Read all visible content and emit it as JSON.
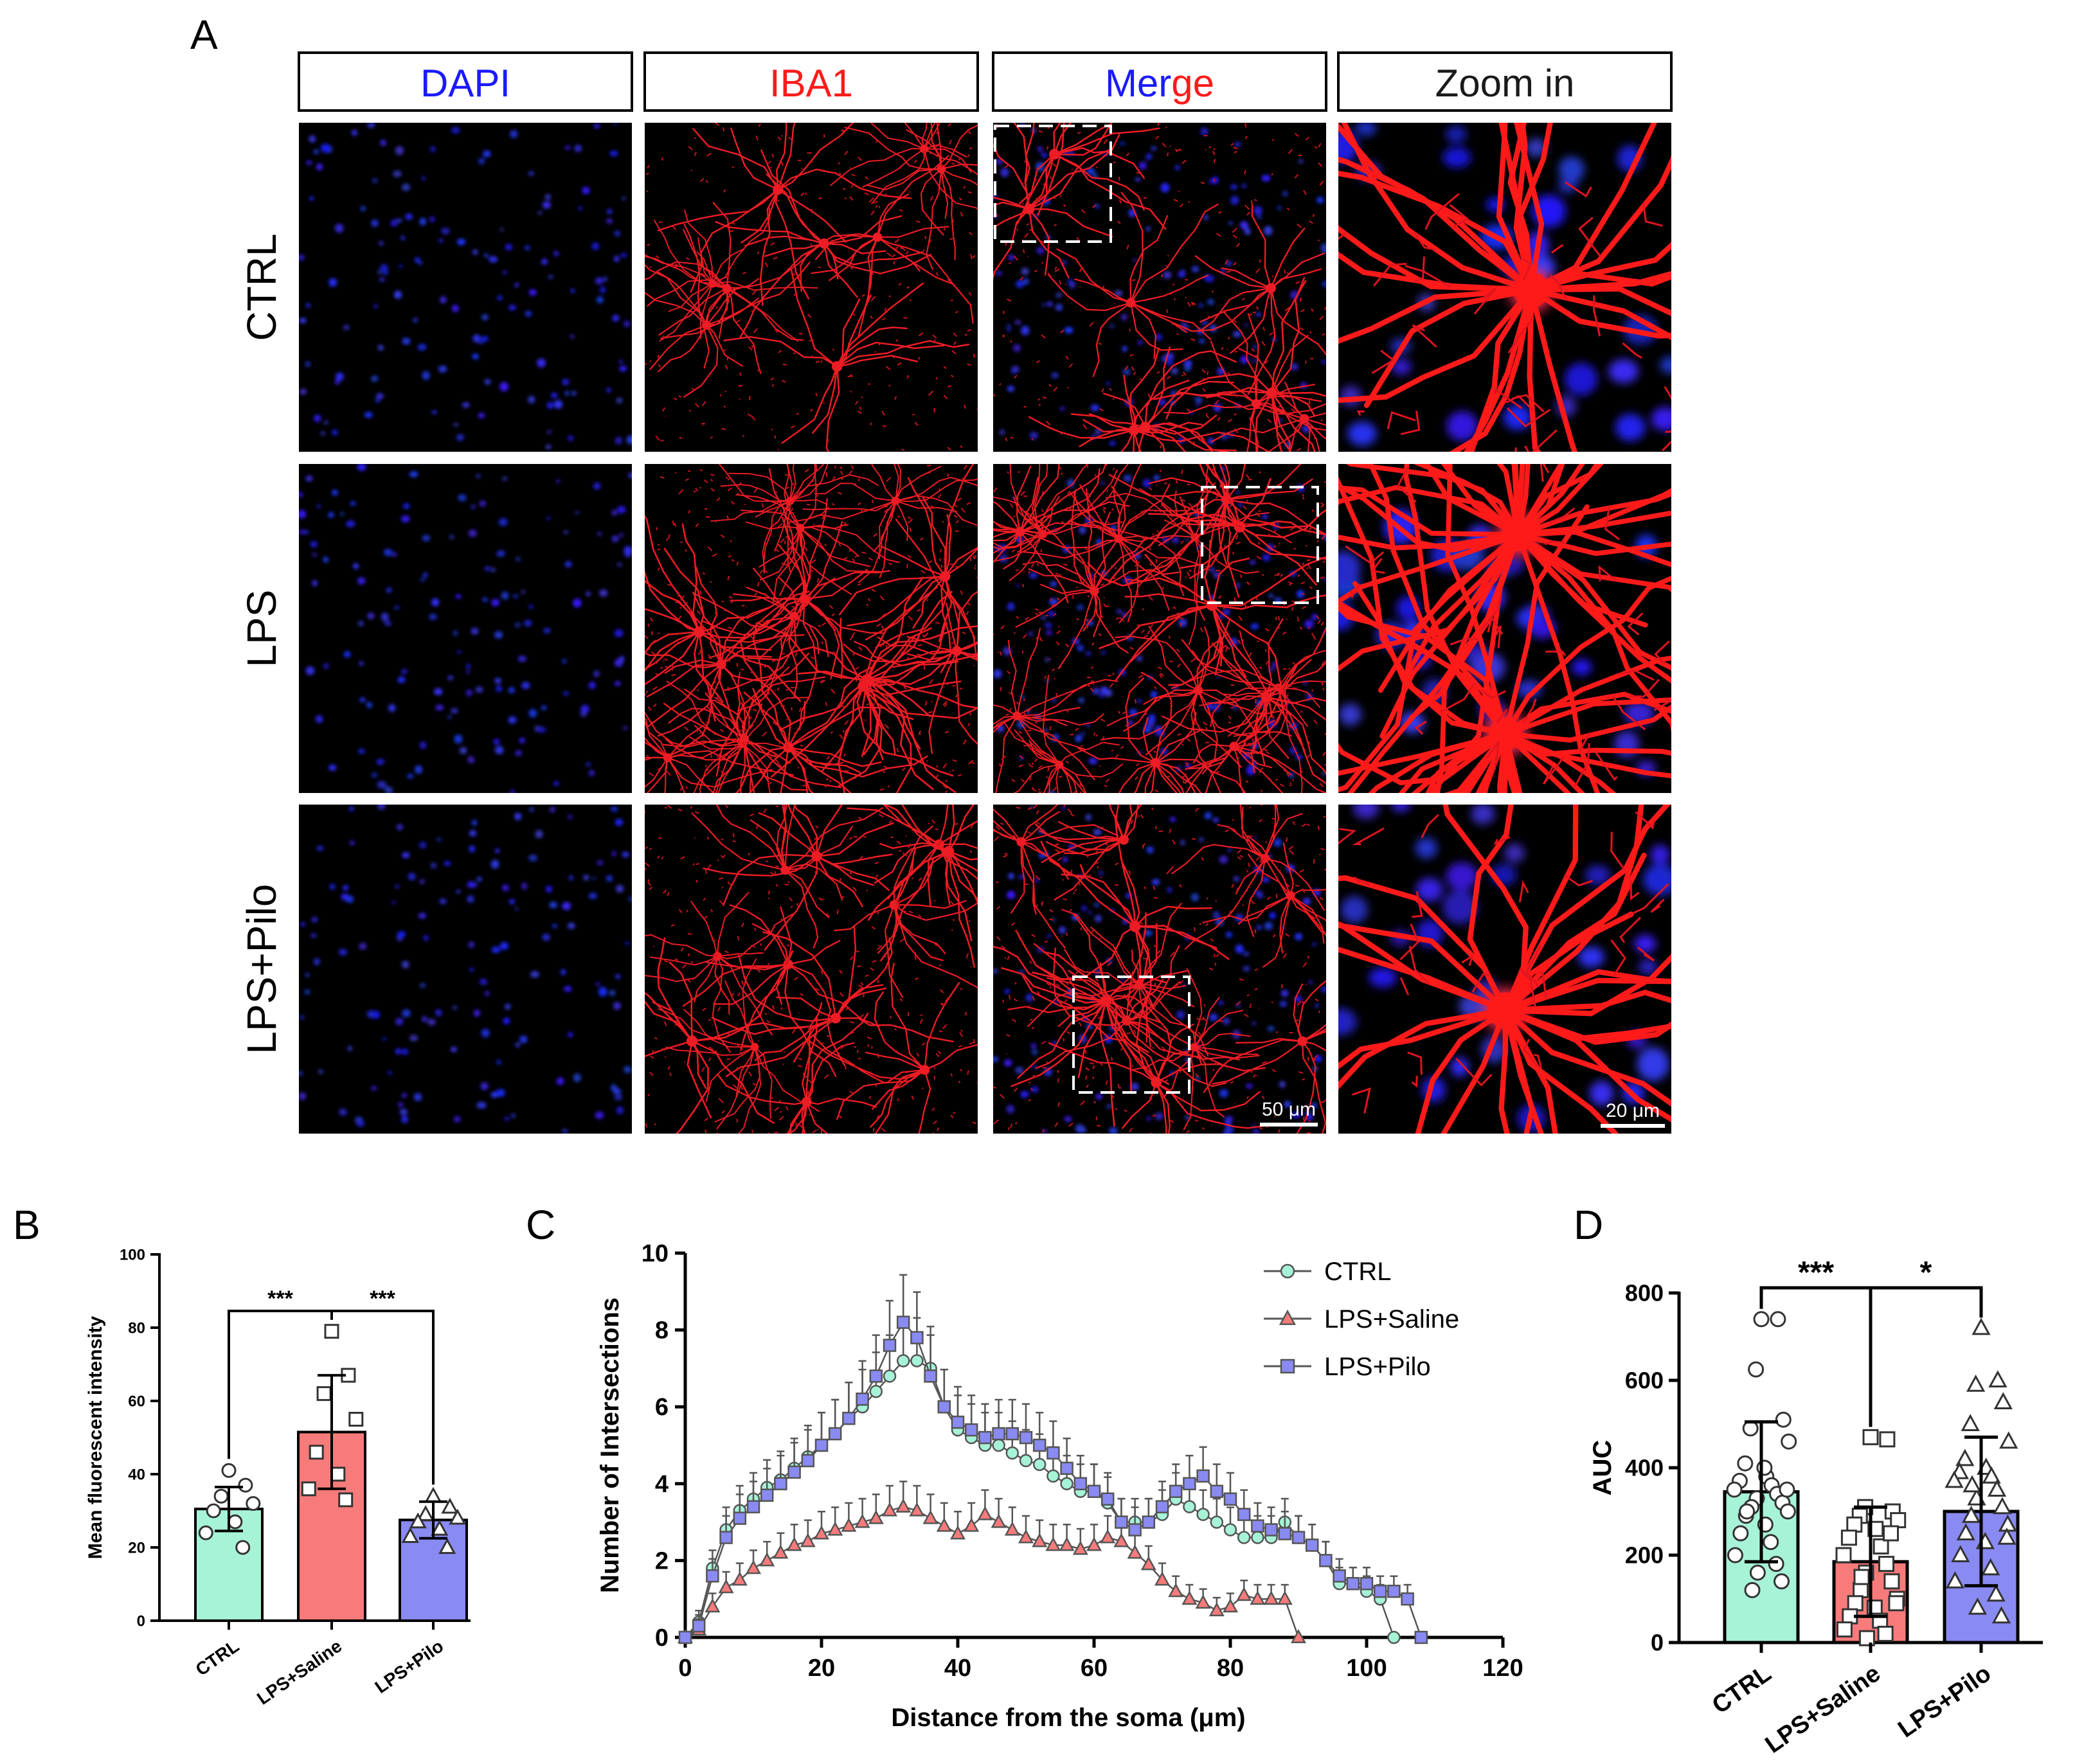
{
  "panel_a": {
    "letter": "A",
    "columns": [
      {
        "parts": [
          {
            "text": "DAPI",
            "color": "#1a1aff"
          }
        ]
      },
      {
        "parts": [
          {
            "text": "IBA1",
            "color": "#ff1a1a"
          }
        ]
      },
      {
        "parts": [
          {
            "text": "Mer",
            "color": "#1a1aff"
          },
          {
            "text": "ge",
            "color": "#ff1a1a"
          }
        ]
      },
      {
        "parts": [
          {
            "text": "Zoom in",
            "color": "#1a1a1a"
          }
        ]
      }
    ],
    "rows": [
      "CTRL",
      "LPS",
      "LPS+Pilo"
    ],
    "scale_bars": [
      "50 μm",
      "20 μm"
    ]
  },
  "chart_data": [
    {
      "panel": "B",
      "type": "bar",
      "ylabel": "Mean fluorescent intensity",
      "xlabel": "",
      "ylim": [
        0,
        100
      ],
      "yticks": [
        0,
        20,
        40,
        60,
        80,
        100
      ],
      "categories": [
        "CTRL",
        "LPS+Saline",
        "LPS+Pilo"
      ],
      "values": [
        30.5,
        51.5,
        27.5
      ],
      "errors": [
        6,
        15.5,
        5
      ],
      "colors": [
        "#a7f3d7",
        "#f87b7b",
        "#8a8af3"
      ],
      "markers": [
        "circle",
        "square",
        "triangle"
      ],
      "points": [
        [
          41,
          37,
          34,
          32,
          30,
          27,
          24,
          20
        ],
        [
          79,
          67,
          62,
          55,
          46,
          40,
          36,
          33
        ],
        [
          34,
          31,
          29,
          28,
          27,
          25,
          23,
          20
        ]
      ],
      "significance": [
        {
          "from": 0,
          "to": 1,
          "label": "***"
        },
        {
          "from": 1,
          "to": 2,
          "label": "***"
        }
      ]
    },
    {
      "panel": "C",
      "type": "line",
      "xlabel": "Distance from the soma (μm)",
      "ylabel": "Number of Intersections",
      "xlim": [
        0,
        120
      ],
      "ylim": [
        0,
        10
      ],
      "xticks": [
        0,
        20,
        40,
        60,
        80,
        100,
        120
      ],
      "yticks": [
        0,
        2,
        4,
        6,
        8,
        10
      ],
      "series": [
        {
          "name": "CTRL",
          "color": "#a7f3d7",
          "marker": "circle",
          "x": [
            0,
            2,
            4,
            6,
            8,
            10,
            12,
            14,
            16,
            18,
            20,
            22,
            24,
            26,
            28,
            30,
            32,
            34,
            36,
            38,
            40,
            42,
            44,
            46,
            48,
            50,
            52,
            54,
            56,
            58,
            60,
            62,
            64,
            66,
            68,
            70,
            72,
            74,
            76,
            78,
            80,
            82,
            84,
            86,
            88,
            90,
            92,
            94,
            96,
            98,
            100,
            102,
            104
          ],
          "y": [
            0,
            0.4,
            1.8,
            2.8,
            3.3,
            3.6,
            3.9,
            4.1,
            4.4,
            4.7,
            5.0,
            5.3,
            5.7,
            6.0,
            6.4,
            6.8,
            7.2,
            7.2,
            7.0,
            6.0,
            5.4,
            5.2,
            5.0,
            5.0,
            4.8,
            4.6,
            4.5,
            4.2,
            4.0,
            3.8,
            3.8,
            3.5,
            3.0,
            3.0,
            3.0,
            3.2,
            3.6,
            3.4,
            3.2,
            3.0,
            2.8,
            2.6,
            2.6,
            2.6,
            3.0,
            2.6,
            2.4,
            2.0,
            1.4,
            1.4,
            1.2,
            1.0,
            0
          ]
        },
        {
          "name": "LPS+Saline",
          "color": "#f87b7b",
          "marker": "triangle",
          "x": [
            0,
            2,
            4,
            6,
            8,
            10,
            12,
            14,
            16,
            18,
            20,
            22,
            24,
            26,
            28,
            30,
            32,
            34,
            36,
            38,
            40,
            42,
            44,
            46,
            48,
            50,
            52,
            54,
            56,
            58,
            60,
            62,
            64,
            66,
            68,
            70,
            72,
            74,
            76,
            78,
            80,
            82,
            84,
            86,
            88,
            90
          ],
          "y": [
            0,
            0.2,
            0.8,
            1.3,
            1.5,
            1.8,
            2.0,
            2.2,
            2.4,
            2.5,
            2.7,
            2.8,
            2.9,
            3.0,
            3.1,
            3.3,
            3.4,
            3.3,
            3.1,
            2.9,
            2.7,
            2.9,
            3.2,
            3.0,
            2.8,
            2.6,
            2.5,
            2.4,
            2.4,
            2.3,
            2.4,
            2.6,
            2.5,
            2.2,
            1.9,
            1.5,
            1.2,
            1.0,
            0.9,
            0.7,
            0.8,
            1.1,
            1.0,
            1.0,
            1.0,
            0
          ]
        },
        {
          "name": "LPS+Pilo",
          "color": "#8a8af3",
          "marker": "square",
          "x": [
            0,
            2,
            4,
            6,
            8,
            10,
            12,
            14,
            16,
            18,
            20,
            22,
            24,
            26,
            28,
            30,
            32,
            34,
            36,
            38,
            40,
            42,
            44,
            46,
            48,
            50,
            52,
            54,
            56,
            58,
            60,
            62,
            64,
            66,
            68,
            70,
            72,
            74,
            76,
            78,
            80,
            82,
            84,
            86,
            88,
            90,
            92,
            94,
            96,
            98,
            100,
            102,
            104,
            106,
            108
          ],
          "y": [
            0,
            0.3,
            1.6,
            2.6,
            3.1,
            3.4,
            3.7,
            4.0,
            4.3,
            4.6,
            5.0,
            5.3,
            5.7,
            6.2,
            6.8,
            7.6,
            8.2,
            7.8,
            6.8,
            6.0,
            5.6,
            5.4,
            5.2,
            5.3,
            5.3,
            5.2,
            5.0,
            4.8,
            4.4,
            4.0,
            3.8,
            3.6,
            3.0,
            2.8,
            3.0,
            3.4,
            3.8,
            4.0,
            4.2,
            3.8,
            3.6,
            3.2,
            2.9,
            2.8,
            2.7,
            2.6,
            2.4,
            2.0,
            1.6,
            1.4,
            1.4,
            1.2,
            1.2,
            1.0,
            0
          ]
        }
      ]
    },
    {
      "panel": "D",
      "type": "bar",
      "ylabel": "AUC",
      "xlabel": "",
      "ylim": [
        0,
        800
      ],
      "yticks": [
        0,
        200,
        400,
        600,
        800
      ],
      "categories": [
        "CTRL",
        "LPS+Saline",
        "LPS+Pilo"
      ],
      "values": [
        345,
        185,
        300
      ],
      "errors": [
        160,
        125,
        170
      ],
      "colors": [
        "#a7f3d7",
        "#f87b7b",
        "#8a8af3"
      ],
      "markers": [
        "circle",
        "square",
        "triangle"
      ],
      "points": [
        [
          740,
          740,
          625,
          510,
          490,
          460,
          410,
          380,
          370,
          360,
          350,
          340,
          330,
          320,
          310,
          300,
          290,
          270,
          250,
          230,
          200,
          180,
          160,
          140,
          120,
          350,
          300,
          400
        ],
        [
          470,
          465,
          310,
          300,
          290,
          280,
          270,
          260,
          240,
          220,
          200,
          180,
          160,
          140,
          120,
          100,
          90,
          80,
          60,
          50,
          30,
          20,
          10,
          250,
          150,
          90
        ],
        [
          720,
          600,
          590,
          550,
          500,
          460,
          420,
          400,
          390,
          380,
          370,
          350,
          330,
          310,
          290,
          270,
          250,
          230,
          200,
          170,
          140,
          110,
          80,
          60,
          360,
          240
        ]
      ],
      "significance": [
        {
          "from": 0,
          "to": 1,
          "label": "***"
        },
        {
          "from": 1,
          "to": 2,
          "label": "*"
        }
      ]
    }
  ]
}
